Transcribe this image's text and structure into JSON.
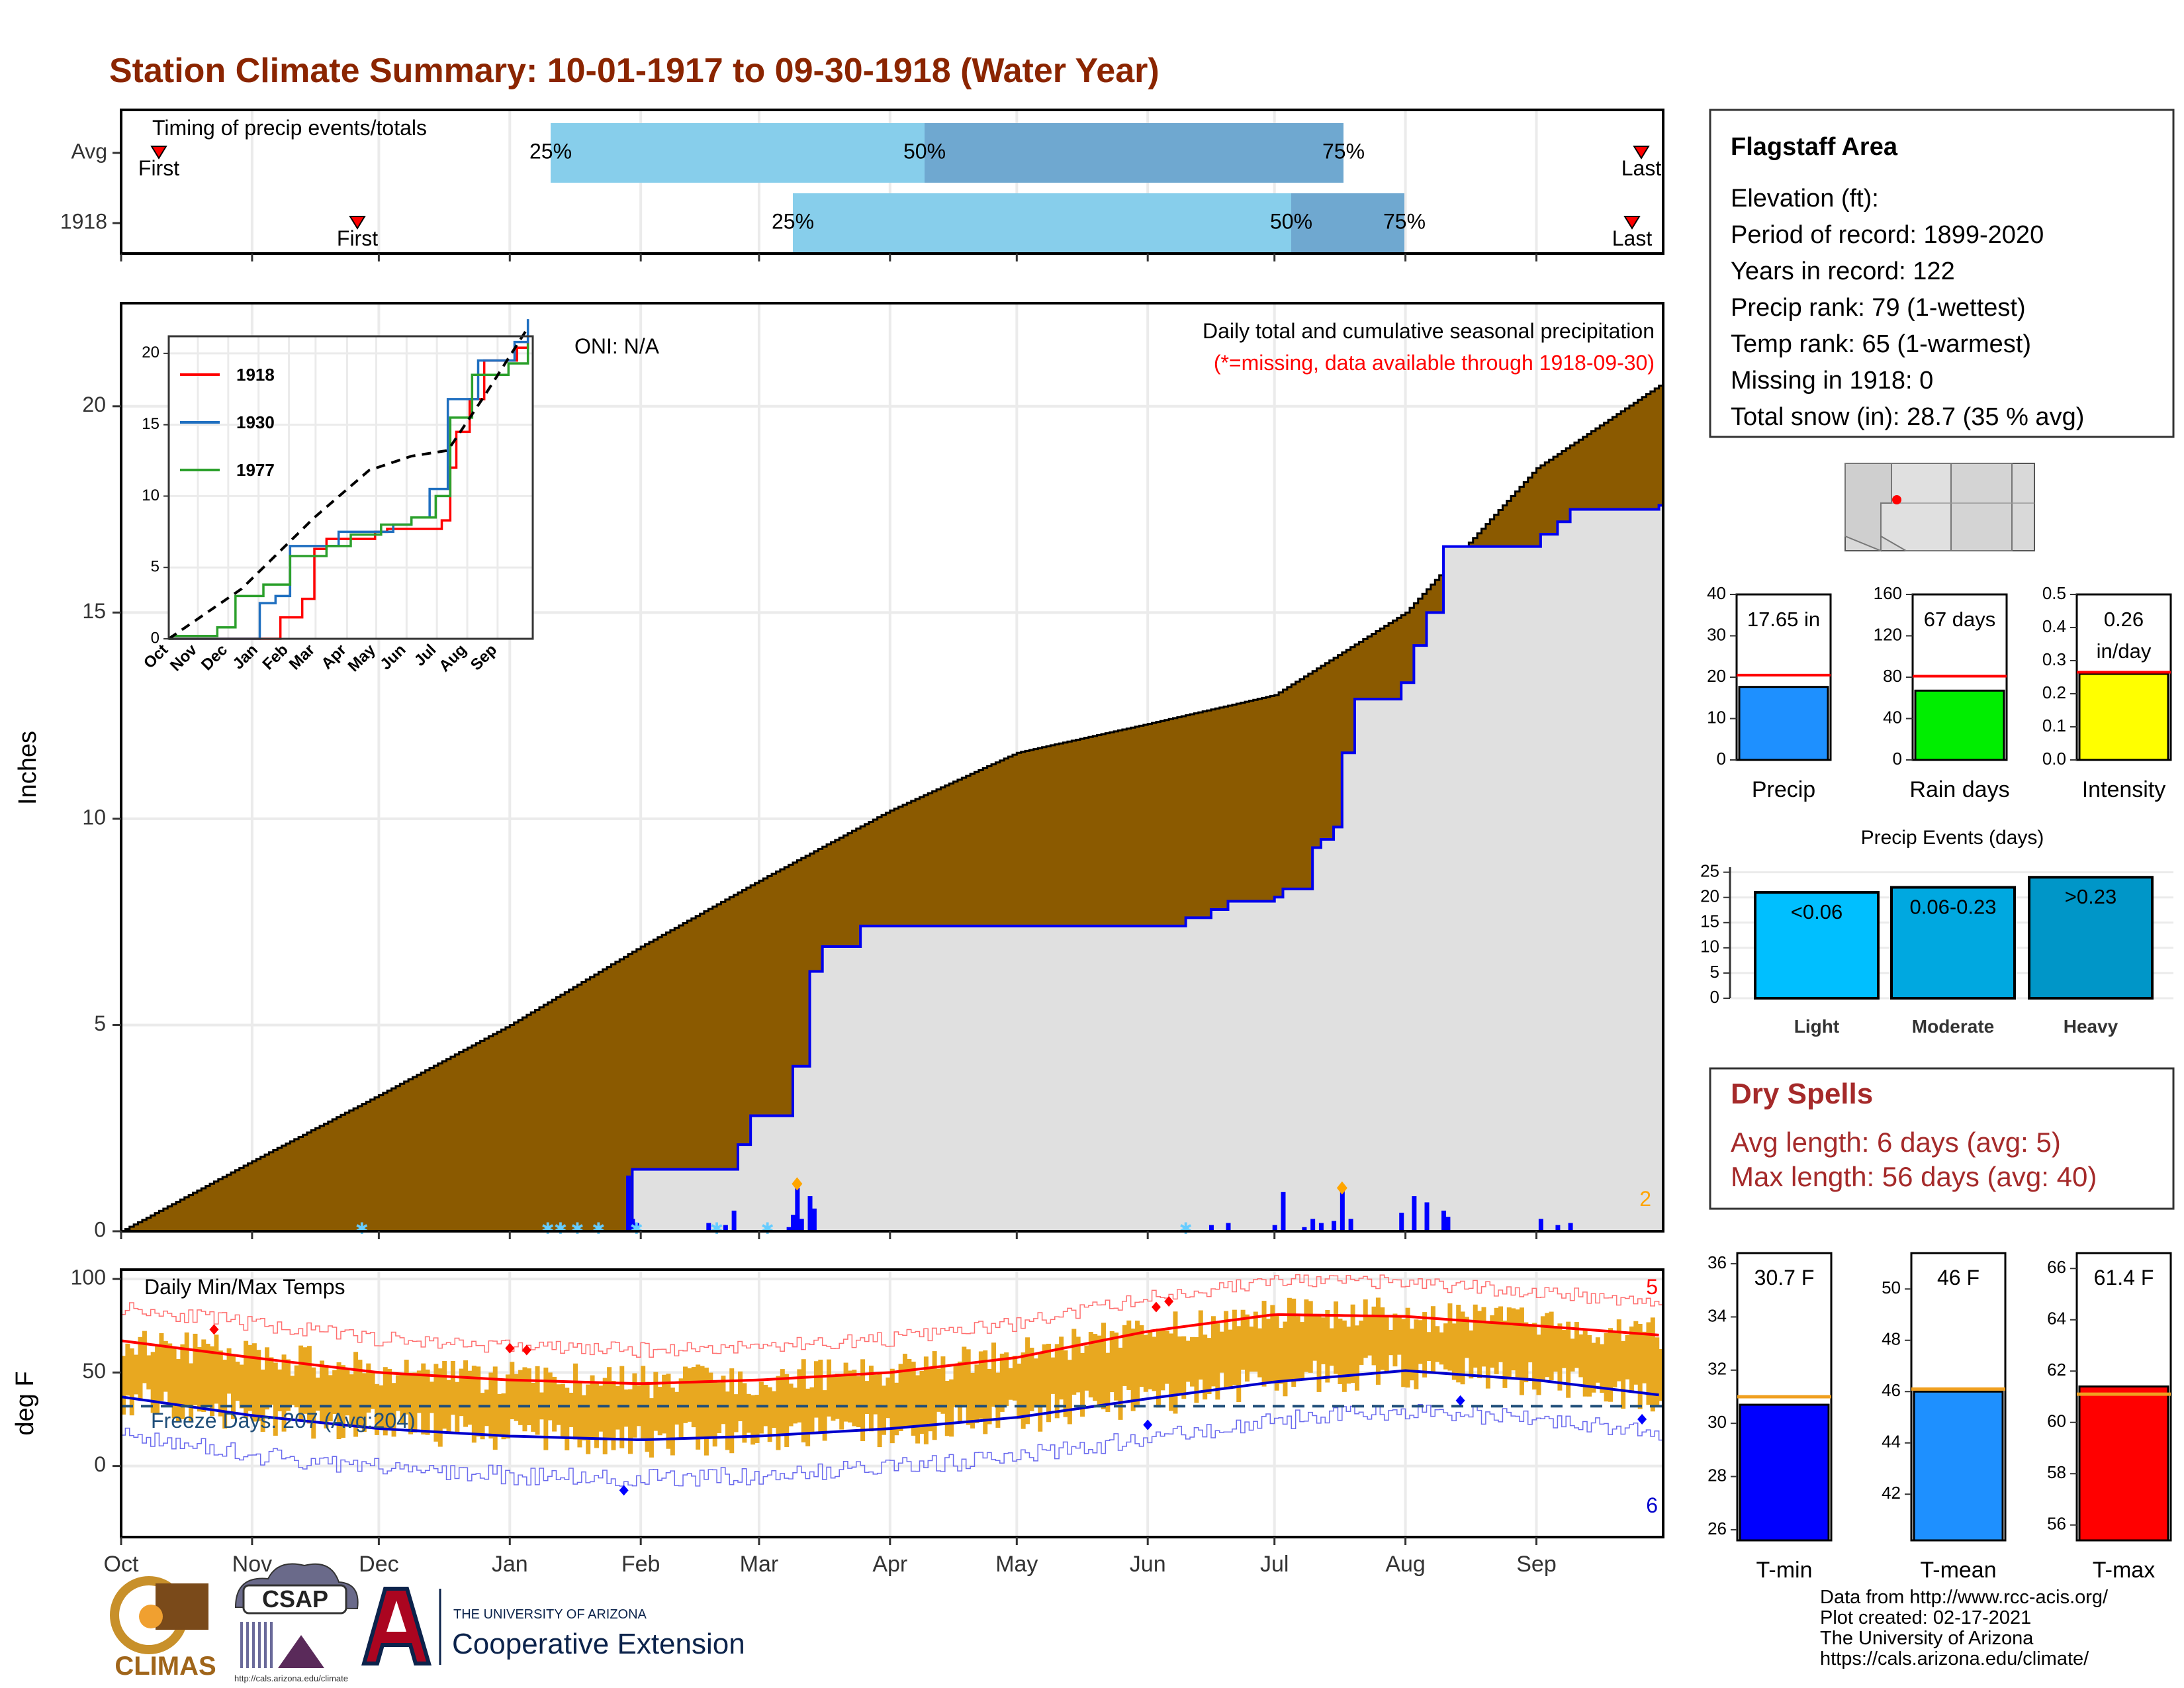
{
  "title": "Station Climate Summary: 10-01-1917 to 09-30-1918 (Water Year)",
  "colors": {
    "title": "#8b2500",
    "cumulative_fill": "#8b5a00",
    "avg_fill": "#e0e0e0",
    "daily_bars": "#0000ff",
    "q_light": "#87ceeb",
    "q_dark": "#6fa8d0",
    "temp_bars": "#e8a820",
    "tmax": "#ff0000",
    "tmin": "#0000cc",
    "dry_text": "#a52a2a"
  },
  "timing": {
    "label": "Timing of precip events/totals",
    "rows": [
      {
        "label": "Avg",
        "first_label": "First",
        "last_label": "Last",
        "p25": "25%",
        "p50": "50%",
        "p75": "75%"
      },
      {
        "label": "1918",
        "first_label": "First",
        "last_label": "Last",
        "p25": "25%",
        "p50": "50%",
        "p75": "75%"
      }
    ]
  },
  "months": [
    "Oct",
    "Nov",
    "Dec",
    "Jan",
    "Feb",
    "Mar",
    "Apr",
    "May",
    "Jun",
    "Jul",
    "Aug",
    "Sep"
  ],
  "main": {
    "ylabel": "Inches",
    "yticks": [
      "0",
      "5",
      "10",
      "15",
      "20"
    ],
    "oni": "ONI: N/A",
    "caption": "Daily total and cumulative seasonal precipitation",
    "missing_note": "(*=missing, data available through 1918-09-30)",
    "corner_count": "2"
  },
  "inset": {
    "yticks": [
      "0",
      "5",
      "10",
      "15",
      "20"
    ],
    "months": [
      "Oct",
      "Nov",
      "Dec",
      "Jan",
      "Feb",
      "Mar",
      "Apr",
      "May",
      "Jun",
      "Jul",
      "Aug",
      "Sep"
    ],
    "legend": [
      {
        "name": "1918",
        "color": "#ff0000"
      },
      {
        "name": "1930",
        "color": "#1f6fc0"
      },
      {
        "name": "1977",
        "color": "#2ca02c"
      }
    ]
  },
  "temps": {
    "title": "Daily Min/Max Temps",
    "ylabel": "deg F",
    "yticks": [
      "0",
      "50",
      "100"
    ],
    "freeze": "Freeze Days: 207 (Avg:204)",
    "count_high": "5",
    "count_low": "6"
  },
  "info": {
    "station": "Flagstaff Area",
    "lines": [
      "Elevation (ft):",
      "Period of record: 1899-2020",
      "Years in record: 122",
      "Precip rank: 79 (1-wettest)",
      "Temp rank: 65 (1-warmest)",
      "Missing in 1918: 0",
      "Total snow (in): 28.7 (35 % avg)"
    ]
  },
  "mini_bars": [
    {
      "label": "Precip",
      "value_text": "17.65 in",
      "color": "#1e90ff",
      "ymax": 40,
      "value": 17.65,
      "avg": 20.5,
      "ticks": [
        "0",
        "10",
        "20",
        "30",
        "40"
      ],
      "tickvals": [
        0,
        10,
        20,
        30,
        40
      ]
    },
    {
      "label": "Rain days",
      "value_text": "67 days",
      "color": "#00ee00",
      "ymax": 160,
      "value": 67,
      "avg": 81,
      "ticks": [
        "0",
        "40",
        "80",
        "120",
        "160"
      ],
      "tickvals": [
        0,
        40,
        80,
        120,
        160
      ]
    },
    {
      "label": "Intensity",
      "value_text": "0.26",
      "value_text2": "in/day",
      "color": "#ffff00",
      "ymax": 0.5,
      "value": 0.26,
      "avg": 0.265,
      "ticks": [
        "0.0",
        "0.1",
        "0.2",
        "0.3",
        "0.4",
        "0.5"
      ],
      "tickvals": [
        0,
        0.1,
        0.2,
        0.3,
        0.4,
        0.5
      ]
    }
  ],
  "events": {
    "title": "Precip Events (days)",
    "yticks": [
      "0",
      "5",
      "10",
      "15",
      "20",
      "25"
    ],
    "bars": [
      {
        "label": "Light",
        "range": "<0.06",
        "value": 21,
        "color": "#00bfff"
      },
      {
        "label": "Moderate",
        "range": "0.06-0.23",
        "value": 22,
        "color": "#00a8e0"
      },
      {
        "label": "Heavy",
        "range": ">0.23",
        "value": 24,
        "color": "#0096c8"
      }
    ]
  },
  "dry": {
    "title": "Dry Spells",
    "avg_line": "Avg length: 6 days (avg: 5)",
    "max_line": "Max length: 56 days (avg: 40)"
  },
  "temp_bars": [
    {
      "label": "T-min",
      "value_text": "30.7 F",
      "color": "#0000ff",
      "ymin": 25.6,
      "ymax": 36.4,
      "value": 30.7,
      "avg": 31.0,
      "ticks": [
        "26",
        "28",
        "30",
        "32",
        "34",
        "36"
      ],
      "tickvals": [
        26,
        28,
        30,
        32,
        34,
        36
      ]
    },
    {
      "label": "T-mean",
      "value_text": "46 F",
      "color": "#1e90ff",
      "ymin": 40.2,
      "ymax": 51.4,
      "value": 46.0,
      "avg": 46.1,
      "ticks": [
        "42",
        "44",
        "46",
        "48",
        "50"
      ],
      "tickvals": [
        42,
        44,
        46,
        48,
        50
      ]
    },
    {
      "label": "T-max",
      "value_text": "61.4 F",
      "color": "#ff0000",
      "ymin": 55.4,
      "ymax": 66.6,
      "value": 61.4,
      "avg": 61.1,
      "ticks": [
        "56",
        "58",
        "60",
        "62",
        "64",
        "66"
      ],
      "tickvals": [
        56,
        58,
        60,
        62,
        64,
        66
      ]
    }
  ],
  "footer": {
    "lines": [
      "Data from http://www.rcc-acis.org/",
      "Plot created: 02-17-2021",
      "The University of Arizona",
      "https://cals.arizona.edu/climate/"
    ],
    "climas": "CLIMAS",
    "csap": "CSAP",
    "csap_url": "http://cals.arizona.edu/climate",
    "ua_small": "THE UNIVERSITY OF ARIZONA",
    "ua_big": "Cooperative Extension"
  },
  "chart_data": {
    "type": "area",
    "title": "Station Climate Summary: 10-01-1917 to 09-30-1918 (Water Year)",
    "ylabel": "Inches",
    "ylim": [
      0,
      22.5
    ],
    "x_domain": "day of water year (Oct 1 = 0)",
    "cumulative_avg": [
      [
        0,
        0
      ],
      [
        31,
        1.7
      ],
      [
        61,
        3.3
      ],
      [
        92,
        5.0
      ],
      [
        123,
        6.9
      ],
      [
        151,
        8.5
      ],
      [
        182,
        10.2
      ],
      [
        212,
        11.6
      ],
      [
        243,
        12.3
      ],
      [
        273,
        13.0
      ],
      [
        304,
        15.0
      ],
      [
        335,
        18.5
      ],
      [
        364,
        20.5
      ]
    ],
    "cumulative_1918": [
      [
        0,
        0
      ],
      [
        120,
        0
      ],
      [
        121,
        1.5
      ],
      [
        145,
        1.5
      ],
      [
        146,
        2.1
      ],
      [
        149,
        2.8
      ],
      [
        158,
        2.8
      ],
      [
        159,
        4.0
      ],
      [
        163,
        6.3
      ],
      [
        166,
        6.9
      ],
      [
        174,
        6.9
      ],
      [
        175,
        7.4
      ],
      [
        250,
        7.4
      ],
      [
        252,
        7.6
      ],
      [
        258,
        7.8
      ],
      [
        262,
        8.0
      ],
      [
        273,
        8.1
      ],
      [
        275,
        8.3
      ],
      [
        281,
        8.3
      ],
      [
        282,
        9.3
      ],
      [
        284,
        9.5
      ],
      [
        287,
        9.8
      ],
      [
        289,
        11.6
      ],
      [
        291,
        11.6
      ],
      [
        292,
        12.9
      ],
      [
        302,
        12.9
      ],
      [
        303,
        13.3
      ],
      [
        306,
        14.2
      ],
      [
        309,
        15.0
      ],
      [
        313,
        16.6
      ],
      [
        335,
        16.6
      ],
      [
        336,
        16.9
      ],
      [
        340,
        17.2
      ],
      [
        343,
        17.5
      ],
      [
        364,
        17.6
      ]
    ],
    "daily_precip": [
      [
        120,
        1.35
      ],
      [
        121,
        0.3
      ],
      [
        122,
        0.2
      ],
      [
        139,
        0.2
      ],
      [
        143,
        0.15
      ],
      [
        145,
        0.5
      ],
      [
        158,
        0.1
      ],
      [
        159,
        0.4
      ],
      [
        160,
        1.05
      ],
      [
        161,
        0.3
      ],
      [
        163,
        0.85
      ],
      [
        164,
        0.55
      ],
      [
        252,
        0.1
      ],
      [
        258,
        0.15
      ],
      [
        262,
        0.2
      ],
      [
        273,
        0.15
      ],
      [
        275,
        0.95
      ],
      [
        280,
        0.1
      ],
      [
        282,
        0.3
      ],
      [
        284,
        0.2
      ],
      [
        287,
        0.25
      ],
      [
        289,
        1.0
      ],
      [
        291,
        0.3
      ],
      [
        303,
        0.45
      ],
      [
        306,
        0.85
      ],
      [
        309,
        0.7
      ],
      [
        313,
        0.5
      ],
      [
        314,
        0.35
      ],
      [
        336,
        0.3
      ],
      [
        340,
        0.15
      ],
      [
        343,
        0.2
      ]
    ],
    "inset_series": [
      {
        "name": "1918",
        "points": [
          [
            0,
            0
          ],
          [
            88,
            0
          ],
          [
            92,
            1.5
          ],
          [
            110,
            2.8
          ],
          [
            120,
            6.3
          ],
          [
            130,
            7.0
          ],
          [
            170,
            7.5
          ],
          [
            180,
            7.7
          ],
          [
            225,
            8.3
          ],
          [
            232,
            12.0
          ],
          [
            237,
            14.5
          ],
          [
            248,
            16.8
          ],
          [
            260,
            19.5
          ],
          [
            287,
            20.4
          ],
          [
            296,
            20.8
          ]
        ]
      },
      {
        "name": "1930",
        "points": [
          [
            0,
            0
          ],
          [
            68,
            0
          ],
          [
            75,
            2.5
          ],
          [
            88,
            3.0
          ],
          [
            100,
            6.5
          ],
          [
            140,
            7.5
          ],
          [
            185,
            8.0
          ],
          [
            200,
            8.5
          ],
          [
            215,
            10.5
          ],
          [
            230,
            16.8
          ],
          [
            255,
            19.5
          ],
          [
            285,
            20.8
          ],
          [
            296,
            22.4
          ]
        ]
      },
      {
        "name": "1977",
        "points": [
          [
            0,
            0
          ],
          [
            3,
            0.2
          ],
          [
            40,
            0.8
          ],
          [
            55,
            3.0
          ],
          [
            78,
            3.8
          ],
          [
            100,
            5.8
          ],
          [
            130,
            6.5
          ],
          [
            150,
            7.3
          ],
          [
            175,
            8.0
          ],
          [
            200,
            8.5
          ],
          [
            220,
            10.0
          ],
          [
            232,
            15.5
          ],
          [
            250,
            18.5
          ],
          [
            280,
            19.3
          ],
          [
            296,
            20.7
          ]
        ]
      },
      {
        "name": "average",
        "points": [
          [
            0,
            0
          ],
          [
            60,
            3.5
          ],
          [
            120,
            8.5
          ],
          [
            165,
            11.8
          ],
          [
            200,
            12.8
          ],
          [
            230,
            13.2
          ],
          [
            260,
            17.0
          ],
          [
            296,
            21.8
          ]
        ]
      }
    ],
    "temps": {
      "ylim": [
        -38,
        105
      ],
      "tmax_avg": [
        [
          0,
          67
        ],
        [
          31,
          58
        ],
        [
          61,
          50
        ],
        [
          92,
          46
        ],
        [
          123,
          44
        ],
        [
          151,
          46
        ],
        [
          182,
          50
        ],
        [
          212,
          58
        ],
        [
          243,
          72
        ],
        [
          273,
          81
        ],
        [
          304,
          80
        ],
        [
          335,
          75
        ],
        [
          364,
          70
        ]
      ],
      "tmin_avg": [
        [
          0,
          37
        ],
        [
          31,
          27
        ],
        [
          61,
          20
        ],
        [
          92,
          16
        ],
        [
          123,
          14
        ],
        [
          151,
          16
        ],
        [
          182,
          20
        ],
        [
          212,
          26
        ],
        [
          243,
          36
        ],
        [
          273,
          45
        ],
        [
          304,
          51
        ],
        [
          335,
          46
        ],
        [
          364,
          38
        ]
      ],
      "freeze_line": 32
    }
  }
}
